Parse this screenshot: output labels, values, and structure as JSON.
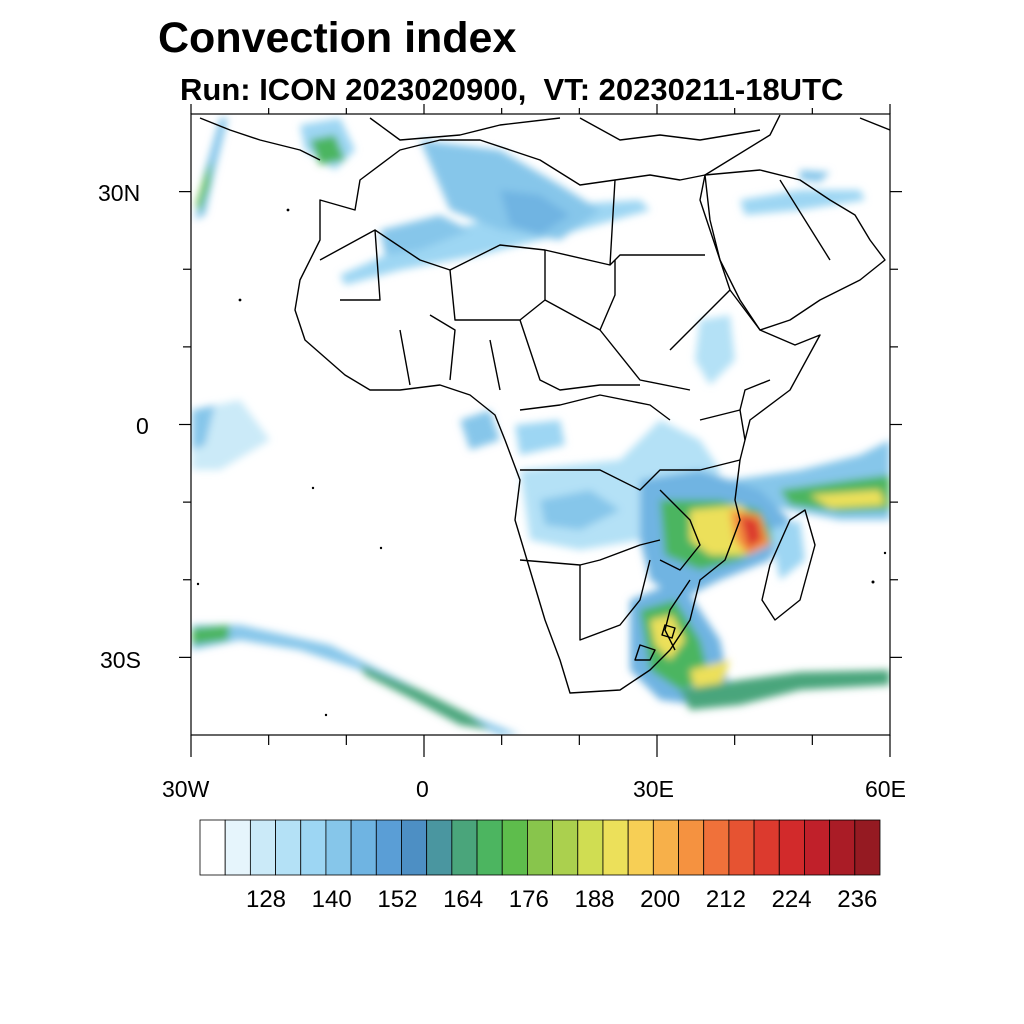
{
  "header": {
    "title": "Convection index",
    "subtitle": "Run: ICON 2023020900,  VT: 20230211-18UTC"
  },
  "axes": {
    "lat_labels": [
      "30N",
      "0",
      "30S"
    ],
    "lon_labels": [
      "30W",
      "0",
      "30E",
      "60E"
    ],
    "lon_range": [
      -30,
      60
    ],
    "lat_range": [
      -40,
      40
    ]
  },
  "colorbar": {
    "tick_labels": [
      "128",
      "140",
      "152",
      "164",
      "176",
      "188",
      "200",
      "212",
      "224",
      "236"
    ],
    "colors": [
      "#ffffff",
      "#e6f5fc",
      "#cbeaf8",
      "#b4e1f6",
      "#9dd6f3",
      "#86c6ea",
      "#6fb4e2",
      "#5a9ed6",
      "#4d8fc4",
      "#4a96a0",
      "#4aa57b",
      "#4cb560",
      "#5ebd4c",
      "#88c54c",
      "#abd04e",
      "#d0dd52",
      "#ece05a",
      "#f7cf55",
      "#f7b04a",
      "#f59240",
      "#f0713a",
      "#e65332",
      "#dc3a2e",
      "#d22a2b",
      "#c0202a",
      "#aa1c26",
      "#951a22"
    ]
  },
  "layers": {
    "coastline_color": "#000000",
    "precip_colors": {
      "light": "#9dd6f3",
      "blue": "#6fb4e2",
      "green": "#4cb560",
      "yellow": "#ece05a",
      "orange": "#f59240",
      "red": "#dc3a2e"
    }
  }
}
